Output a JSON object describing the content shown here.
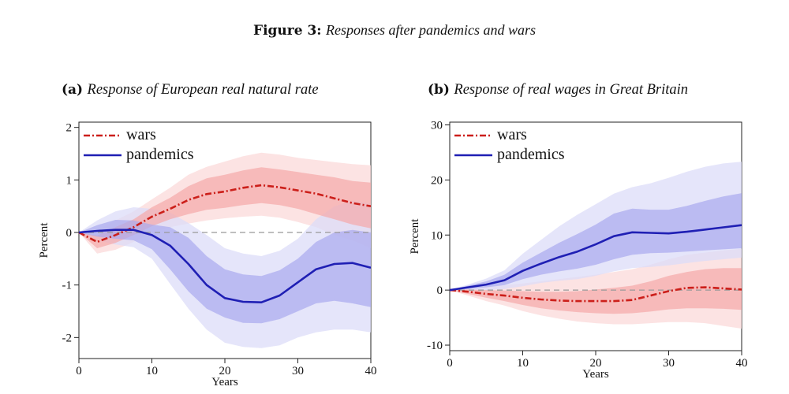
{
  "figure": {
    "label": "Figure 3:",
    "caption": "Responses after pandemics and wars"
  },
  "chart_data": [
    {
      "type": "line",
      "panel_tag": "(a)",
      "title": "Response of European real natural rate",
      "xlabel": "Years",
      "ylabel": "Percent",
      "xlim": [
        0,
        40
      ],
      "ylim": [
        -2.4,
        2.1
      ],
      "xticks": [
        0,
        10,
        20,
        30,
        40
      ],
      "yticks": [
        -2,
        -1,
        0,
        1,
        2
      ],
      "ytick_labels": [
        "-2",
        "-1",
        "0",
        "1",
        "2"
      ],
      "xtick_labels": [
        "0",
        "10",
        "20",
        "30",
        "40"
      ],
      "zero_line": true,
      "legend": [
        "wars",
        "pandemics"
      ],
      "legend_position": "top-left",
      "x": [
        0,
        2.5,
        5,
        7.5,
        10,
        12.5,
        15,
        17.5,
        20,
        22.5,
        25,
        27.5,
        30,
        32.5,
        35,
        37.5,
        40
      ],
      "series": [
        {
          "name": "wars",
          "color": "#cc1f1a",
          "style": "dash-dot",
          "values": [
            0,
            -0.18,
            -0.05,
            0.1,
            0.3,
            0.45,
            0.62,
            0.73,
            0.78,
            0.85,
            0.9,
            0.86,
            0.8,
            0.74,
            0.65,
            0.56,
            0.5
          ],
          "band_inner": {
            "lower": [
              0,
              -0.3,
              -0.2,
              -0.05,
              0.12,
              0.25,
              0.35,
              0.43,
              0.47,
              0.52,
              0.56,
              0.52,
              0.45,
              0.35,
              0.25,
              0.15,
              0.08
            ],
            "upper": [
              0,
              -0.06,
              0.1,
              0.25,
              0.48,
              0.66,
              0.88,
              1.03,
              1.1,
              1.18,
              1.24,
              1.2,
              1.15,
              1.1,
              1.05,
              0.98,
              0.95
            ]
          },
          "band_outer": {
            "lower": [
              0,
              -0.4,
              -0.33,
              -0.18,
              0.0,
              0.1,
              0.17,
              0.23,
              0.27,
              0.3,
              0.32,
              0.28,
              0.2,
              0.1,
              -0.05,
              -0.15,
              -0.3
            ],
            "upper": [
              0,
              0.04,
              0.23,
              0.4,
              0.63,
              0.85,
              1.1,
              1.25,
              1.35,
              1.45,
              1.52,
              1.48,
              1.42,
              1.38,
              1.34,
              1.3,
              1.28
            ]
          }
        },
        {
          "name": "pandemics",
          "color": "#1f1fb4",
          "style": "solid",
          "values": [
            0,
            0.03,
            0.05,
            0.05,
            -0.05,
            -0.25,
            -0.6,
            -1.0,
            -1.25,
            -1.32,
            -1.33,
            -1.2,
            -0.95,
            -0.7,
            -0.6,
            -0.58,
            -0.67
          ],
          "band_inner": {
            "lower": [
              0,
              -0.08,
              -0.12,
              -0.15,
              -0.32,
              -0.7,
              -1.12,
              -1.45,
              -1.62,
              -1.72,
              -1.73,
              -1.65,
              -1.5,
              -1.35,
              -1.3,
              -1.35,
              -1.42
            ],
            "upper": [
              0,
              0.14,
              0.24,
              0.23,
              0.15,
              0.1,
              -0.1,
              -0.45,
              -0.7,
              -0.8,
              -0.83,
              -0.72,
              -0.5,
              -0.18,
              0.0,
              0.05,
              0.0
            ]
          },
          "band_outer": {
            "lower": [
              0,
              -0.15,
              -0.23,
              -0.28,
              -0.5,
              -0.98,
              -1.45,
              -1.85,
              -2.1,
              -2.18,
              -2.2,
              -2.15,
              -2.0,
              -1.9,
              -1.85,
              -1.85,
              -1.9
            ],
            "upper": [
              0,
              0.23,
              0.4,
              0.48,
              0.45,
              0.38,
              0.18,
              -0.05,
              -0.3,
              -0.4,
              -0.45,
              -0.35,
              -0.12,
              0.25,
              0.5,
              0.6,
              0.55
            ]
          }
        }
      ]
    },
    {
      "type": "line",
      "panel_tag": "(b)",
      "title": "Response of real wages in Great Britain",
      "xlabel": "Years",
      "ylabel": "Percent",
      "xlim": [
        0,
        40
      ],
      "ylim": [
        -11,
        30.5
      ],
      "xticks": [
        0,
        10,
        20,
        30,
        40
      ],
      "yticks": [
        -10,
        0,
        10,
        20,
        30
      ],
      "ytick_labels": [
        "-10",
        "0",
        "10",
        "20",
        "30"
      ],
      "xtick_labels": [
        "0",
        "10",
        "20",
        "30",
        "40"
      ],
      "zero_line": true,
      "legend": [
        "wars",
        "pandemics"
      ],
      "legend_position": "top-left",
      "x": [
        0,
        2.5,
        5,
        7.5,
        10,
        12.5,
        15,
        17.5,
        20,
        22.5,
        25,
        27.5,
        30,
        32.5,
        35,
        37.5,
        40
      ],
      "series": [
        {
          "name": "wars",
          "color": "#cc1f1a",
          "style": "dash-dot",
          "values": [
            0,
            -0.3,
            -0.7,
            -1.0,
            -1.4,
            -1.7,
            -1.9,
            -2.0,
            -2.0,
            -2.0,
            -1.8,
            -1.0,
            -0.2,
            0.4,
            0.5,
            0.3,
            0.1
          ],
          "band_inner": {
            "lower": [
              0,
              -0.7,
              -1.4,
              -2.0,
              -2.7,
              -3.3,
              -3.7,
              -4.0,
              -4.2,
              -4.3,
              -4.2,
              -3.9,
              -3.5,
              -3.3,
              -3.3,
              -3.4,
              -3.6
            ],
            "upper": [
              0,
              0.1,
              0.0,
              -0.1,
              -0.2,
              -0.3,
              -0.3,
              -0.2,
              0.1,
              0.4,
              0.8,
              1.6,
              2.6,
              3.3,
              3.8,
              4.0,
              4.0
            ]
          },
          "band_outer": {
            "lower": [
              0,
              -1.0,
              -2.0,
              -2.8,
              -3.8,
              -4.6,
              -5.2,
              -5.7,
              -6.0,
              -6.2,
              -6.2,
              -6.0,
              -5.8,
              -5.8,
              -6.0,
              -6.5,
              -7.0
            ],
            "upper": [
              0,
              0.4,
              0.6,
              0.9,
              1.2,
              1.6,
              2.0,
              2.4,
              2.8,
              3.3,
              3.8,
              4.6,
              5.6,
              6.4,
              6.8,
              7.2,
              7.5
            ]
          }
        },
        {
          "name": "pandemics",
          "color": "#1f1fb4",
          "style": "solid",
          "values": [
            0,
            0.5,
            1.0,
            1.8,
            3.5,
            4.8,
            6.0,
            7.0,
            8.3,
            9.8,
            10.5,
            10.4,
            10.3,
            10.6,
            11.0,
            11.4,
            11.8
          ],
          "band_inner": {
            "lower": [
              0,
              0.2,
              0.5,
              0.9,
              2.0,
              2.8,
              3.4,
              3.9,
              4.6,
              5.6,
              6.4,
              6.7,
              6.8,
              7.0,
              7.2,
              7.4,
              7.6
            ],
            "upper": [
              0,
              0.8,
              1.6,
              2.8,
              5.0,
              6.8,
              8.6,
              10.2,
              11.9,
              13.9,
              14.8,
              14.6,
              14.6,
              15.3,
              16.2,
              17.0,
              17.6
            ]
          },
          "band_outer": {
            "lower": [
              0,
              0.0,
              0.0,
              0.2,
              0.7,
              1.3,
              1.7,
              2.0,
              2.6,
              3.4,
              4.0,
              4.2,
              4.5,
              4.9,
              5.3,
              5.6,
              5.9
            ],
            "upper": [
              0,
              1.0,
              2.1,
              3.6,
              6.6,
              9.1,
              11.6,
              13.7,
              15.6,
              17.5,
              18.7,
              19.4,
              20.4,
              21.5,
              22.4,
              23.0,
              23.3
            ]
          }
        }
      ]
    }
  ]
}
